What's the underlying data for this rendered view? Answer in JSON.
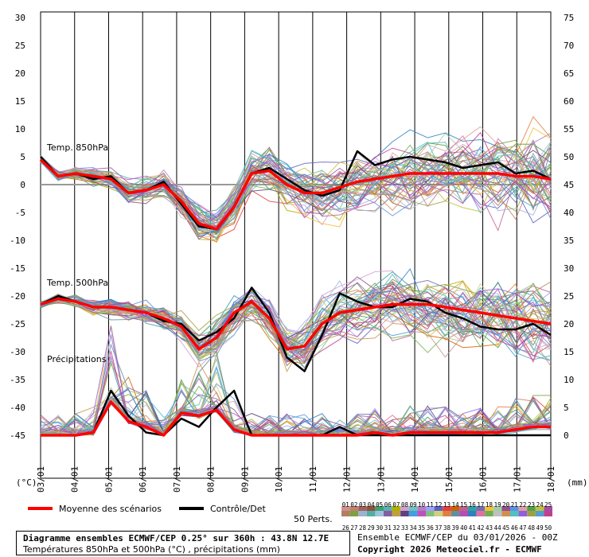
{
  "chart_data": {
    "type": "line",
    "x_dates": [
      "03/01",
      "04/01",
      "05/01",
      "06/01",
      "07/01",
      "08/01",
      "09/01",
      "10/01",
      "11/01",
      "12/01",
      "13/01",
      "14/01",
      "15/01",
      "16/01",
      "17/01",
      "18/01"
    ],
    "y_left_ticks": [
      30,
      25,
      20,
      15,
      10,
      5,
      0,
      -5,
      -10,
      -15,
      -20,
      -25,
      -30,
      -35,
      -40,
      -45
    ],
    "y_right_ticks": [
      75,
      70,
      65,
      60,
      55,
      50,
      45,
      40,
      35,
      30,
      25,
      20,
      15,
      10,
      5,
      0
    ],
    "y_left_unit": "(°C)",
    "y_right_unit": "(mm)",
    "ylim_left": [
      -45,
      30
    ],
    "ylim_right": [
      0,
      75
    ],
    "grid": "vertical-dates",
    "panels": [
      {
        "label": "Temp. 850hPa"
      },
      {
        "label": "Temp. 500hPa"
      },
      {
        "label": "Précipitations"
      }
    ],
    "series": [
      {
        "name": "Moyenne des scénarios",
        "color": "#ff0000"
      },
      {
        "name": "Contrôle/Det",
        "color": "#000000"
      }
    ],
    "t850_mean": [
      4.5,
      1.5,
      2,
      1.5,
      1,
      -1.5,
      -1,
      0,
      -3,
      -7,
      -8,
      -4,
      2,
      2.5,
      0,
      -1.5,
      -1.5,
      -0.5,
      0.5,
      1,
      1.5,
      2,
      2,
      2,
      2,
      2,
      2,
      1.5,
      1.5,
      1
    ],
    "t850_control": [
      5,
      1.5,
      2,
      1,
      1.5,
      -1.5,
      -1,
      0.5,
      -3.5,
      -7.5,
      -8,
      -4,
      2,
      3,
      1,
      -1,
      -2,
      -1,
      6,
      3.5,
      4.5,
      5,
      4.5,
      4,
      3,
      3.5,
      4,
      2,
      2.5,
      1
    ],
    "t500_mean": [
      -21.5,
      -20.5,
      -21,
      -22,
      -22,
      -22.5,
      -23,
      -24,
      -25.5,
      -29.5,
      -27.5,
      -23,
      -21,
      -24,
      -29.5,
      -29,
      -25,
      -23,
      -22.5,
      -22,
      -21.5,
      -21.5,
      -21.5,
      -22,
      -22.5,
      -23,
      -23.5,
      -24,
      -24.5,
      -25
    ],
    "t500_control": [
      -21.5,
      -20,
      -21,
      -22,
      -22,
      -22.5,
      -23,
      -24.5,
      -25,
      -28,
      -26.5,
      -24,
      -18.5,
      -23,
      -31,
      -33.5,
      -27,
      -19.5,
      -21,
      -22,
      -22,
      -20.5,
      -21,
      -23,
      -24,
      -25.5,
      -26,
      -26,
      -25,
      -27
    ],
    "precip_mean": [
      0,
      0,
      0,
      0.5,
      6,
      2.5,
      1.5,
      0,
      4,
      3.5,
      4.5,
      1,
      0,
      0,
      0,
      0,
      0,
      0,
      0,
      0.5,
      0,
      0.5,
      0.5,
      0.5,
      0.5,
      0.5,
      0.5,
      1,
      1.5,
      1.5
    ],
    "precip_control": [
      0,
      0,
      0,
      0.5,
      8,
      3.5,
      0.5,
      0,
      3,
      1.5,
      5,
      8,
      0,
      0,
      0,
      0,
      0,
      1.5,
      0,
      0,
      0,
      0,
      0,
      0,
      0,
      0,
      0,
      0,
      0,
      0
    ]
  },
  "legend": {
    "mean_label": "Moyenne des scénarios",
    "control_label": "Contrôle/Det",
    "perts_label": "50 Perts.",
    "perts_row1": [
      "01",
      "02",
      "03",
      "04",
      "05",
      "06",
      "07",
      "08",
      "09",
      "10",
      "11",
      "12",
      "13",
      "14",
      "15",
      "16",
      "17",
      "18",
      "19",
      "20",
      "21",
      "22",
      "23",
      "24",
      "25"
    ],
    "perts_row2": [
      "26",
      "27",
      "28",
      "29",
      "30",
      "31",
      "32",
      "33",
      "34",
      "35",
      "36",
      "37",
      "38",
      "39",
      "40",
      "41",
      "42",
      "43",
      "44",
      "45",
      "46",
      "47",
      "48",
      "49",
      "50"
    ],
    "perts_colors_row1": [
      "#d09090",
      "#c08070",
      "#a06060",
      "#905040",
      "#40a070",
      "#60b0b0",
      "#b0b000",
      "#d0a0d0",
      "#70c0c0",
      "#b080c0",
      "#a0a0ff",
      "#6060c0",
      "#e04040",
      "#d06000",
      "#c06090",
      "#30a0a0",
      "#7070b0",
      "#f0c040",
      "#a0d0a0",
      "#905090",
      "#6090e0",
      "#e0a0a0",
      "#50a050",
      "#c0c040",
      "#a050a0"
    ],
    "perts_colors_row2": [
      "#b08060",
      "#80a040",
      "#a0b0d0",
      "#50b0a0",
      "#a0c0e0",
      "#8060a0",
      "#c0a040",
      "#604080",
      "#40a0e0",
      "#c050c0",
      "#80c080",
      "#d0d080",
      "#e08040",
      "#6090a0",
      "#b050b0",
      "#3080c0",
      "#e070a0",
      "#70b050",
      "#c0c0c0",
      "#d09050",
      "#50c0c0",
      "#9060e0",
      "#a0a040",
      "#50a0d0",
      "#c04090"
    ]
  },
  "footer": {
    "title": "Diagramme ensembles ECMWF/CEP 0.25° sur 360h : 43.8N 12.7E",
    "subtitle": "Températures 850hPa et 500hPa (°C) , précipitations (mm)",
    "ensemble_info": "Ensemble ECMWF/CEP du 03/01/2026 - 00Z",
    "copyright": "Copyright 2026 Meteociel.fr - ECMWF"
  }
}
